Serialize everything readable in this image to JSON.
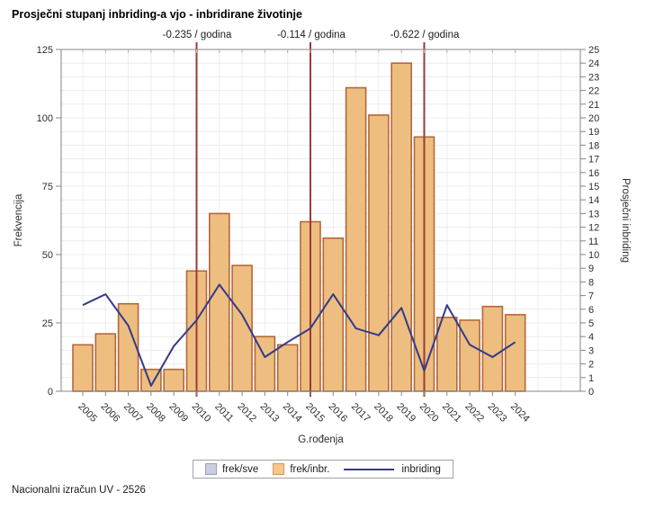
{
  "title": "Prosječni stupanj inbriding-a vjo - inbridirane životinje",
  "footer": "Nacionalni izračun UV - 2526",
  "legend": {
    "items": [
      {
        "label": "frek/sve",
        "swatch": "gray-box",
        "color": "#c9cde0"
      },
      {
        "label": "frek/inbr.",
        "swatch": "orange-box",
        "color": "#f6c78d"
      },
      {
        "label": "inbriding",
        "swatch": "navy-line",
        "color": "#333a8c"
      }
    ]
  },
  "colors": {
    "bar_fill": "#edbe7f",
    "bar_border": "#b5673a",
    "line": "#333a8c",
    "ref_line": "#9d3a38",
    "grid": "#ececec",
    "frame": "#868686",
    "tick_text": "#2e2e2e"
  },
  "chart_data": {
    "type": "bar",
    "title": "Prosječni stupanj inbriding-a vjo - inbridirane životinje",
    "categories": [
      "2005",
      "2006",
      "2007",
      "2008",
      "2009",
      "2010",
      "2011",
      "2012",
      "2013",
      "2014",
      "2015",
      "2016",
      "2017",
      "2018",
      "2019",
      "2020",
      "2021",
      "2022",
      "2023",
      "2024"
    ],
    "series": [
      {
        "name": "frek/inbr.",
        "type": "bar",
        "axis": "left",
        "values": [
          17,
          21,
          32,
          8,
          8,
          44,
          65,
          46,
          20,
          17,
          62,
          56,
          111,
          101,
          120,
          93,
          27,
          26,
          31,
          28
        ]
      },
      {
        "name": "inbriding",
        "type": "line",
        "axis": "right",
        "values": [
          6.3,
          7.1,
          4.8,
          0.4,
          3.3,
          5.2,
          7.8,
          5.6,
          2.5,
          3.6,
          4.6,
          7.1,
          4.6,
          4.1,
          6.1,
          1.5,
          6.3,
          3.4,
          2.5,
          3.6
        ]
      }
    ],
    "xlabel": "G.rođenja",
    "ylabel_left": "Frekvencija",
    "ylabel_right": "Prosječni inbriding",
    "ylim_left": [
      0,
      125
    ],
    "ytick_left": 25,
    "ylim_right": [
      0,
      25
    ],
    "ytick_right": 1,
    "grid": true,
    "legend_position": "bottom",
    "ref_lines": [
      {
        "x": "2010",
        "label": "-0.235 / godina"
      },
      {
        "x": "2015",
        "label": "-0.114 / godina"
      },
      {
        "x": "2020",
        "label": "-0.622 / godina"
      }
    ]
  }
}
